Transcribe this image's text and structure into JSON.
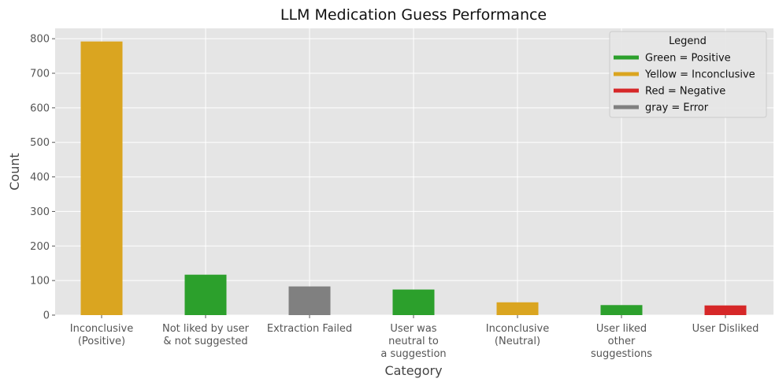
{
  "chart_data": {
    "type": "bar",
    "title": "LLM Medication Guess Performance",
    "xlabel": "Category",
    "ylabel": "Count",
    "ylim": [
      0,
      830
    ],
    "yticks": [
      0,
      100,
      200,
      300,
      400,
      500,
      600,
      700,
      800
    ],
    "grid": true,
    "categories": [
      "Inconclusive\n(Positive)",
      "Not liked by user\n& not suggested",
      "Extraction Failed",
      "User was\nneutral to\na suggestion",
      "Inconclusive\n(Neutral)",
      "User liked\nother\nsuggestions",
      "User Disliked"
    ],
    "values": [
      792,
      117,
      83,
      74,
      37,
      29,
      28
    ],
    "colors": [
      "#daa520",
      "#2ca02c",
      "#808080",
      "#2ca02c",
      "#daa520",
      "#2ca02c",
      "#d62728"
    ],
    "legend": {
      "title": "Legend",
      "position": "top-right",
      "entries": [
        {
          "label": "Green = Positive",
          "color": "#2ca02c"
        },
        {
          "label": "Yellow = Inconclusive",
          "color": "#daa520"
        },
        {
          "label": "Red = Negative",
          "color": "#d62728"
        },
        {
          "label": "gray = Error",
          "color": "#808080"
        }
      ]
    }
  }
}
